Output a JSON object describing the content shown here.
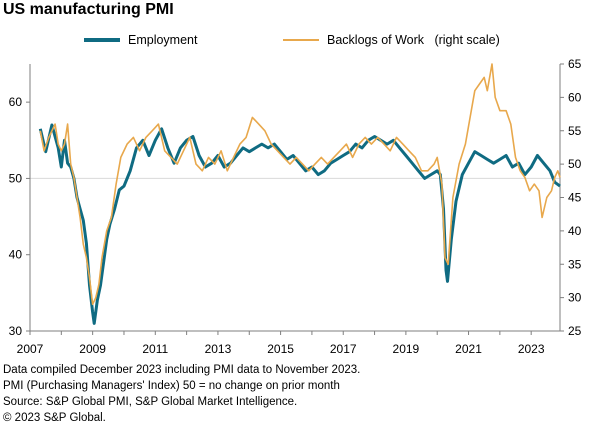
{
  "title": "US manufacturing PMI",
  "legend": [
    {
      "label": "Employment",
      "color": "#0f6b82"
    },
    {
      "label": "Backlogs of Work   (right scale)",
      "color": "#e8a84c"
    }
  ],
  "notes": [
    "Data compiled December 2023 including PMI data to November 2023.",
    "PMI (Purchasing Managers' Index) 50 = no change on prior month",
    "Source: S&P Global PMI,  S&P Global Market Intelligence.",
    "© 2023 S&P Global."
  ],
  "chart_data": {
    "type": "line",
    "title": "US manufacturing PMI",
    "x_range": [
      2007.0,
      2023.92
    ],
    "x_ticks": [
      "2007",
      "2009",
      "2011",
      "2013",
      "2015",
      "2017",
      "2019",
      "2021",
      "2023"
    ],
    "y_left": {
      "range": [
        30,
        65
      ],
      "ticks": [
        30,
        40,
        50,
        60
      ]
    },
    "y_right": {
      "range": [
        25,
        65
      ],
      "ticks": [
        25,
        30,
        35,
        40,
        45,
        50,
        55,
        60,
        65
      ]
    },
    "grid": "horizontal at 50 (left scale)",
    "series": [
      {
        "name": "Employment",
        "axis": "left",
        "color": "#0f6b82",
        "points": [
          [
            2007.33,
            56.5
          ],
          [
            2007.5,
            53.5
          ],
          [
            2007.7,
            57.0
          ],
          [
            2007.9,
            54.0
          ],
          [
            2008.0,
            51.5
          ],
          [
            2008.1,
            55.0
          ],
          [
            2008.2,
            52.0
          ],
          [
            2008.3,
            51.5
          ],
          [
            2008.4,
            50.0
          ],
          [
            2008.5,
            47.5
          ],
          [
            2008.6,
            46.0
          ],
          [
            2008.7,
            44.5
          ],
          [
            2008.8,
            41.5
          ],
          [
            2008.9,
            36.0
          ],
          [
            2009.0,
            32.5
          ],
          [
            2009.05,
            31.0
          ],
          [
            2009.15,
            34.0
          ],
          [
            2009.25,
            36.0
          ],
          [
            2009.35,
            39.0
          ],
          [
            2009.45,
            42.0
          ],
          [
            2009.55,
            44.0
          ],
          [
            2009.7,
            46.0
          ],
          [
            2009.85,
            48.5
          ],
          [
            2010.0,
            49.0
          ],
          [
            2010.2,
            51.0
          ],
          [
            2010.4,
            54.0
          ],
          [
            2010.6,
            55.0
          ],
          [
            2010.8,
            53.0
          ],
          [
            2011.0,
            55.0
          ],
          [
            2011.2,
            56.5
          ],
          [
            2011.4,
            54.0
          ],
          [
            2011.6,
            52.0
          ],
          [
            2011.8,
            54.0
          ],
          [
            2012.0,
            55.0
          ],
          [
            2012.2,
            55.5
          ],
          [
            2012.4,
            53.0
          ],
          [
            2012.6,
            51.5
          ],
          [
            2012.8,
            52.0
          ],
          [
            2013.0,
            53.0
          ],
          [
            2013.2,
            51.5
          ],
          [
            2013.4,
            52.0
          ],
          [
            2013.6,
            53.0
          ],
          [
            2013.8,
            54.0
          ],
          [
            2014.0,
            53.5
          ],
          [
            2014.2,
            54.0
          ],
          [
            2014.4,
            54.5
          ],
          [
            2014.6,
            54.0
          ],
          [
            2014.8,
            54.5
          ],
          [
            2015.0,
            53.5
          ],
          [
            2015.2,
            52.5
          ],
          [
            2015.4,
            53.0
          ],
          [
            2015.6,
            52.0
          ],
          [
            2015.8,
            51.0
          ],
          [
            2016.0,
            51.5
          ],
          [
            2016.2,
            50.5
          ],
          [
            2016.4,
            51.0
          ],
          [
            2016.6,
            52.0
          ],
          [
            2016.8,
            52.5
          ],
          [
            2017.0,
            53.0
          ],
          [
            2017.2,
            53.5
          ],
          [
            2017.4,
            54.5
          ],
          [
            2017.6,
            54.0
          ],
          [
            2017.8,
            55.0
          ],
          [
            2018.0,
            55.5
          ],
          [
            2018.2,
            55.0
          ],
          [
            2018.4,
            54.5
          ],
          [
            2018.6,
            55.0
          ],
          [
            2018.8,
            54.0
          ],
          [
            2019.0,
            53.0
          ],
          [
            2019.2,
            52.0
          ],
          [
            2019.4,
            51.0
          ],
          [
            2019.6,
            50.0
          ],
          [
            2019.8,
            50.5
          ],
          [
            2020.0,
            51.0
          ],
          [
            2020.1,
            50.5
          ],
          [
            2020.2,
            46.0
          ],
          [
            2020.28,
            38.0
          ],
          [
            2020.33,
            36.5
          ],
          [
            2020.45,
            42.0
          ],
          [
            2020.6,
            47.0
          ],
          [
            2020.8,
            50.5
          ],
          [
            2021.0,
            52.0
          ],
          [
            2021.2,
            53.5
          ],
          [
            2021.4,
            53.0
          ],
          [
            2021.6,
            52.5
          ],
          [
            2021.8,
            52.0
          ],
          [
            2022.0,
            52.5
          ],
          [
            2022.2,
            53.0
          ],
          [
            2022.4,
            51.5
          ],
          [
            2022.6,
            52.0
          ],
          [
            2022.8,
            50.5
          ],
          [
            2023.0,
            51.5
          ],
          [
            2023.2,
            53.0
          ],
          [
            2023.4,
            52.0
          ],
          [
            2023.6,
            51.0
          ],
          [
            2023.75,
            49.5
          ],
          [
            2023.92,
            49.0
          ]
        ]
      },
      {
        "name": "Backlogs of Work   (right scale)",
        "axis": "right",
        "color": "#e8a84c",
        "points": [
          [
            2007.33,
            55.0
          ],
          [
            2007.45,
            52.0
          ],
          [
            2007.6,
            54.0
          ],
          [
            2007.8,
            56.0
          ],
          [
            2007.9,
            53.0
          ],
          [
            2008.0,
            52.0
          ],
          [
            2008.1,
            53.0
          ],
          [
            2008.2,
            56.0
          ],
          [
            2008.3,
            50.0
          ],
          [
            2008.4,
            48.0
          ],
          [
            2008.5,
            45.0
          ],
          [
            2008.6,
            42.0
          ],
          [
            2008.7,
            38.0
          ],
          [
            2008.8,
            36.0
          ],
          [
            2008.9,
            33.0
          ],
          [
            2009.0,
            29.0
          ],
          [
            2009.1,
            30.0
          ],
          [
            2009.2,
            32.0
          ],
          [
            2009.3,
            36.0
          ],
          [
            2009.45,
            40.0
          ],
          [
            2009.6,
            42.0
          ],
          [
            2009.75,
            47.0
          ],
          [
            2009.9,
            51.0
          ],
          [
            2010.1,
            53.0
          ],
          [
            2010.3,
            54.0
          ],
          [
            2010.5,
            52.0
          ],
          [
            2010.7,
            54.0
          ],
          [
            2010.9,
            55.0
          ],
          [
            2011.1,
            56.0
          ],
          [
            2011.3,
            52.0
          ],
          [
            2011.5,
            51.0
          ],
          [
            2011.7,
            50.0
          ],
          [
            2011.9,
            52.0
          ],
          [
            2012.1,
            54.0
          ],
          [
            2012.3,
            50.0
          ],
          [
            2012.5,
            49.0
          ],
          [
            2012.7,
            51.0
          ],
          [
            2012.9,
            50.0
          ],
          [
            2013.1,
            52.0
          ],
          [
            2013.3,
            49.0
          ],
          [
            2013.5,
            51.0
          ],
          [
            2013.7,
            53.0
          ],
          [
            2013.9,
            54.0
          ],
          [
            2014.1,
            57.0
          ],
          [
            2014.3,
            56.0
          ],
          [
            2014.5,
            55.0
          ],
          [
            2014.7,
            53.0
          ],
          [
            2014.9,
            52.0
          ],
          [
            2015.1,
            51.0
          ],
          [
            2015.3,
            50.0
          ],
          [
            2015.5,
            51.0
          ],
          [
            2015.7,
            50.0
          ],
          [
            2015.9,
            49.0
          ],
          [
            2016.1,
            50.0
          ],
          [
            2016.3,
            51.0
          ],
          [
            2016.5,
            50.0
          ],
          [
            2016.7,
            51.0
          ],
          [
            2016.9,
            52.0
          ],
          [
            2017.1,
            53.0
          ],
          [
            2017.3,
            51.0
          ],
          [
            2017.5,
            53.0
          ],
          [
            2017.7,
            54.0
          ],
          [
            2017.9,
            53.0
          ],
          [
            2018.1,
            54.0
          ],
          [
            2018.3,
            53.0
          ],
          [
            2018.5,
            52.0
          ],
          [
            2018.7,
            54.0
          ],
          [
            2018.9,
            53.0
          ],
          [
            2019.1,
            52.0
          ],
          [
            2019.3,
            51.0
          ],
          [
            2019.5,
            49.0
          ],
          [
            2019.7,
            49.0
          ],
          [
            2019.9,
            50.0
          ],
          [
            2020.0,
            51.0
          ],
          [
            2020.15,
            47.0
          ],
          [
            2020.25,
            36.0
          ],
          [
            2020.35,
            35.0
          ],
          [
            2020.5,
            45.0
          ],
          [
            2020.7,
            50.0
          ],
          [
            2020.9,
            53.0
          ],
          [
            2021.05,
            57.0
          ],
          [
            2021.2,
            61.0
          ],
          [
            2021.35,
            62.0
          ],
          [
            2021.5,
            63.0
          ],
          [
            2021.6,
            61.0
          ],
          [
            2021.75,
            65.0
          ],
          [
            2021.85,
            60.0
          ],
          [
            2022.0,
            58.0
          ],
          [
            2022.2,
            58.0
          ],
          [
            2022.35,
            56.0
          ],
          [
            2022.5,
            51.0
          ],
          [
            2022.65,
            49.0
          ],
          [
            2022.8,
            48.0
          ],
          [
            2022.95,
            46.0
          ],
          [
            2023.1,
            47.0
          ],
          [
            2023.25,
            46.0
          ],
          [
            2023.35,
            42.0
          ],
          [
            2023.5,
            45.0
          ],
          [
            2023.65,
            46.0
          ],
          [
            2023.75,
            48.0
          ],
          [
            2023.85,
            49.0
          ],
          [
            2023.92,
            48.0
          ]
        ]
      }
    ]
  }
}
